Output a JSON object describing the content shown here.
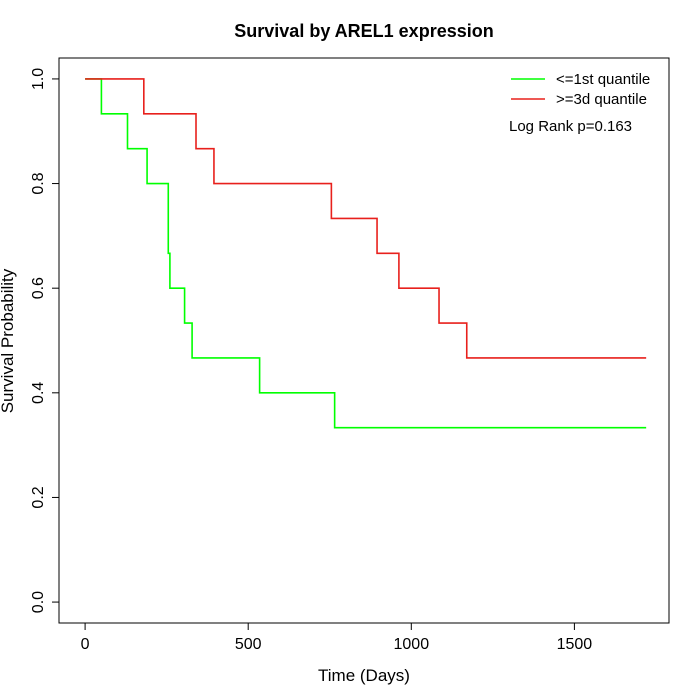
{
  "chart_data": {
    "type": "line",
    "title": "Survival by AREL1 expression",
    "xlabel": "Time (Days)",
    "ylabel": "Survival Probability",
    "xlim": [
      -80,
      1790
    ],
    "ylim": [
      -0.04,
      1.04
    ],
    "xticks": [
      0,
      500,
      1000,
      1500
    ],
    "xtick_labels": [
      "0",
      "500",
      "1000",
      "1500"
    ],
    "yticks": [
      0.0,
      0.2,
      0.4,
      0.6,
      0.8,
      1.0
    ],
    "ytick_labels": [
      "0.0",
      "0.2",
      "0.4",
      "0.6",
      "0.8",
      "1.0"
    ],
    "grid": false,
    "legend_position": "top-right",
    "annotation": "Log Rank p=0.163",
    "series": [
      {
        "name": "<=1st quantile",
        "color": "#00ff00",
        "step": true,
        "x": [
          0,
          50,
          130,
          190,
          255,
          260,
          305,
          328,
          535,
          765,
          1720
        ],
        "y": [
          1.0,
          0.9333,
          0.8667,
          0.8,
          0.6667,
          0.6,
          0.5333,
          0.4667,
          0.4,
          0.3333,
          0.3333
        ]
      },
      {
        "name": ">=3d quantile",
        "color": "#e8201c",
        "step": true,
        "x": [
          0,
          180,
          340,
          395,
          755,
          895,
          962,
          1085,
          1170,
          1720
        ],
        "y": [
          1.0,
          0.9333,
          0.8667,
          0.8,
          0.7333,
          0.6667,
          0.6,
          0.5333,
          0.4667,
          0.4667
        ]
      }
    ]
  }
}
